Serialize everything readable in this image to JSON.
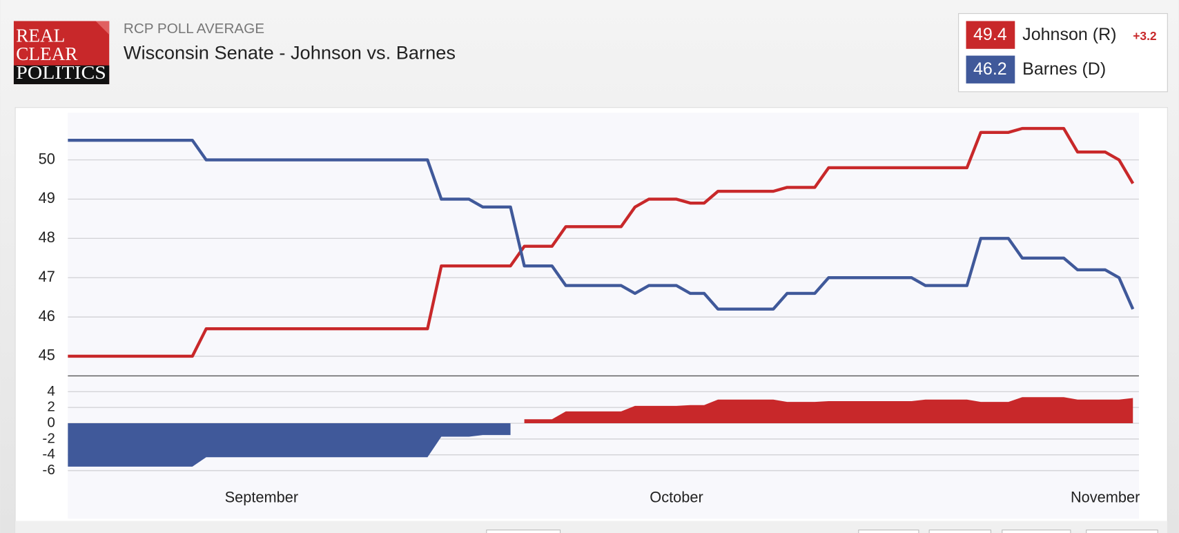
{
  "header": {
    "logo": [
      "REAL",
      "CLEAR",
      "POLITICS"
    ],
    "kicker": "RCP POLL AVERAGE",
    "title": "Wisconsin Senate - Johnson vs. Barnes",
    "lead_label": "+3.2"
  },
  "chart_data": [
    {
      "type": "line",
      "categories": [
        null,
        null,
        null,
        null,
        null,
        null,
        null,
        null,
        null,
        null,
        null,
        null,
        null,
        null,
        "September",
        null,
        null,
        null,
        null,
        null,
        null,
        null,
        null,
        null,
        null,
        null,
        null,
        null,
        null,
        null,
        null,
        null,
        null,
        null,
        null,
        null,
        null,
        null,
        null,
        null,
        null,
        null,
        null,
        null,
        "October",
        null,
        null,
        null,
        null,
        null,
        null,
        null,
        null,
        null,
        null,
        null,
        null,
        null,
        null,
        null,
        null,
        null,
        null,
        null,
        null,
        null,
        null,
        null,
        null,
        null,
        null,
        null,
        null,
        null,
        null,
        "November",
        null,
        null
      ],
      "series": [
        {
          "name": "Johnson (R)",
          "color": "#c8282a",
          "values": [
            45.0,
            45.0,
            45.0,
            45.0,
            45.0,
            45.0,
            45.0,
            45.0,
            45.0,
            45.0,
            45.7,
            45.7,
            45.7,
            45.7,
            45.7,
            45.7,
            45.7,
            45.7,
            45.7,
            45.7,
            45.7,
            45.7,
            45.7,
            45.7,
            45.7,
            45.7,
            45.7,
            47.3,
            47.3,
            47.3,
            47.3,
            47.3,
            47.3,
            47.8,
            47.8,
            47.8,
            48.3,
            48.3,
            48.3,
            48.3,
            48.3,
            48.8,
            49.0,
            49.0,
            49.0,
            48.9,
            48.9,
            49.2,
            49.2,
            49.2,
            49.2,
            49.2,
            49.3,
            49.3,
            49.3,
            49.8,
            49.8,
            49.8,
            49.8,
            49.8,
            49.8,
            49.8,
            49.8,
            49.8,
            49.8,
            49.8,
            50.7,
            50.7,
            50.7,
            50.8,
            50.8,
            50.8,
            50.8,
            50.2,
            50.2,
            50.2,
            50.0,
            49.4
          ]
        },
        {
          "name": "Barnes (D)",
          "color": "#40599a",
          "values": [
            50.5,
            50.5,
            50.5,
            50.5,
            50.5,
            50.5,
            50.5,
            50.5,
            50.5,
            50.5,
            50.0,
            50.0,
            50.0,
            50.0,
            50.0,
            50.0,
            50.0,
            50.0,
            50.0,
            50.0,
            50.0,
            50.0,
            50.0,
            50.0,
            50.0,
            50.0,
            50.0,
            49.0,
            49.0,
            49.0,
            48.8,
            48.8,
            48.8,
            47.3,
            47.3,
            47.3,
            46.8,
            46.8,
            46.8,
            46.8,
            46.8,
            46.6,
            46.8,
            46.8,
            46.8,
            46.6,
            46.6,
            46.2,
            46.2,
            46.2,
            46.2,
            46.2,
            46.6,
            46.6,
            46.6,
            47.0,
            47.0,
            47.0,
            47.0,
            47.0,
            47.0,
            47.0,
            46.8,
            46.8,
            46.8,
            46.8,
            48.0,
            48.0,
            48.0,
            47.5,
            47.5,
            47.5,
            47.5,
            47.2,
            47.2,
            47.2,
            47.0,
            46.2
          ]
        }
      ],
      "ylim": [
        44.5,
        51.2
      ],
      "yticks": [
        45,
        46,
        47,
        48,
        49,
        50
      ],
      "grid": true
    },
    {
      "type": "area",
      "values": [
        -5.5,
        -5.5,
        -5.5,
        -5.5,
        -5.5,
        -5.5,
        -5.5,
        -5.5,
        -5.5,
        -5.5,
        -4.3,
        -4.3,
        -4.3,
        -4.3,
        -4.3,
        -4.3,
        -4.3,
        -4.3,
        -4.3,
        -4.3,
        -4.3,
        -4.3,
        -4.3,
        -4.3,
        -4.3,
        -4.3,
        -4.3,
        -1.7,
        -1.7,
        -1.7,
        -1.5,
        -1.5,
        -1.5,
        0.5,
        0.5,
        0.5,
        1.5,
        1.5,
        1.5,
        1.5,
        1.5,
        2.2,
        2.2,
        2.2,
        2.2,
        2.3,
        2.3,
        3.0,
        3.0,
        3.0,
        3.0,
        3.0,
        2.7,
        2.7,
        2.7,
        2.8,
        2.8,
        2.8,
        2.8,
        2.8,
        2.8,
        2.8,
        3.0,
        3.0,
        3.0,
        3.0,
        2.7,
        2.7,
        2.7,
        3.3,
        3.3,
        3.3,
        3.3,
        3.0,
        3.0,
        3.0,
        3.0,
        3.2
      ],
      "positive_color": "#c8282a",
      "negative_color": "#40599a",
      "ylim": [
        -7,
        6
      ],
      "yticks": [
        -6,
        -4,
        -2,
        0,
        2,
        4
      ],
      "grid": true
    }
  ]
}
